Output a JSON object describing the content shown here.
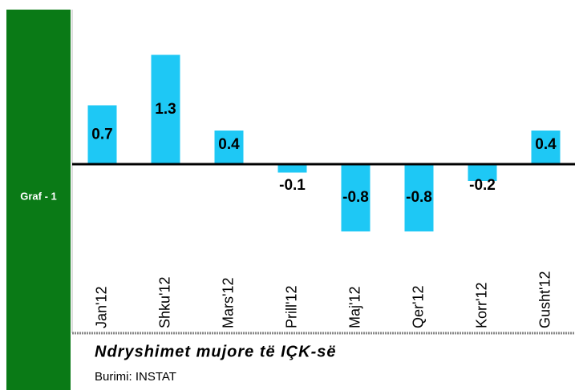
{
  "panel_label": "Graf - 1",
  "chart_data": {
    "type": "bar",
    "title": "Ndryshimet mujore të IÇK-së",
    "source": "Burimi: INSTAT",
    "categories": [
      "Jan'12",
      "Shku'12",
      "Mars'12",
      "Prill'12",
      "Maj'12",
      "Qer'12",
      "Korr'12",
      "Gusht'12"
    ],
    "values": [
      0.7,
      1.3,
      0.4,
      -0.1,
      -0.8,
      -0.8,
      -0.2,
      0.4
    ],
    "color": "#1ec8f5"
  }
}
